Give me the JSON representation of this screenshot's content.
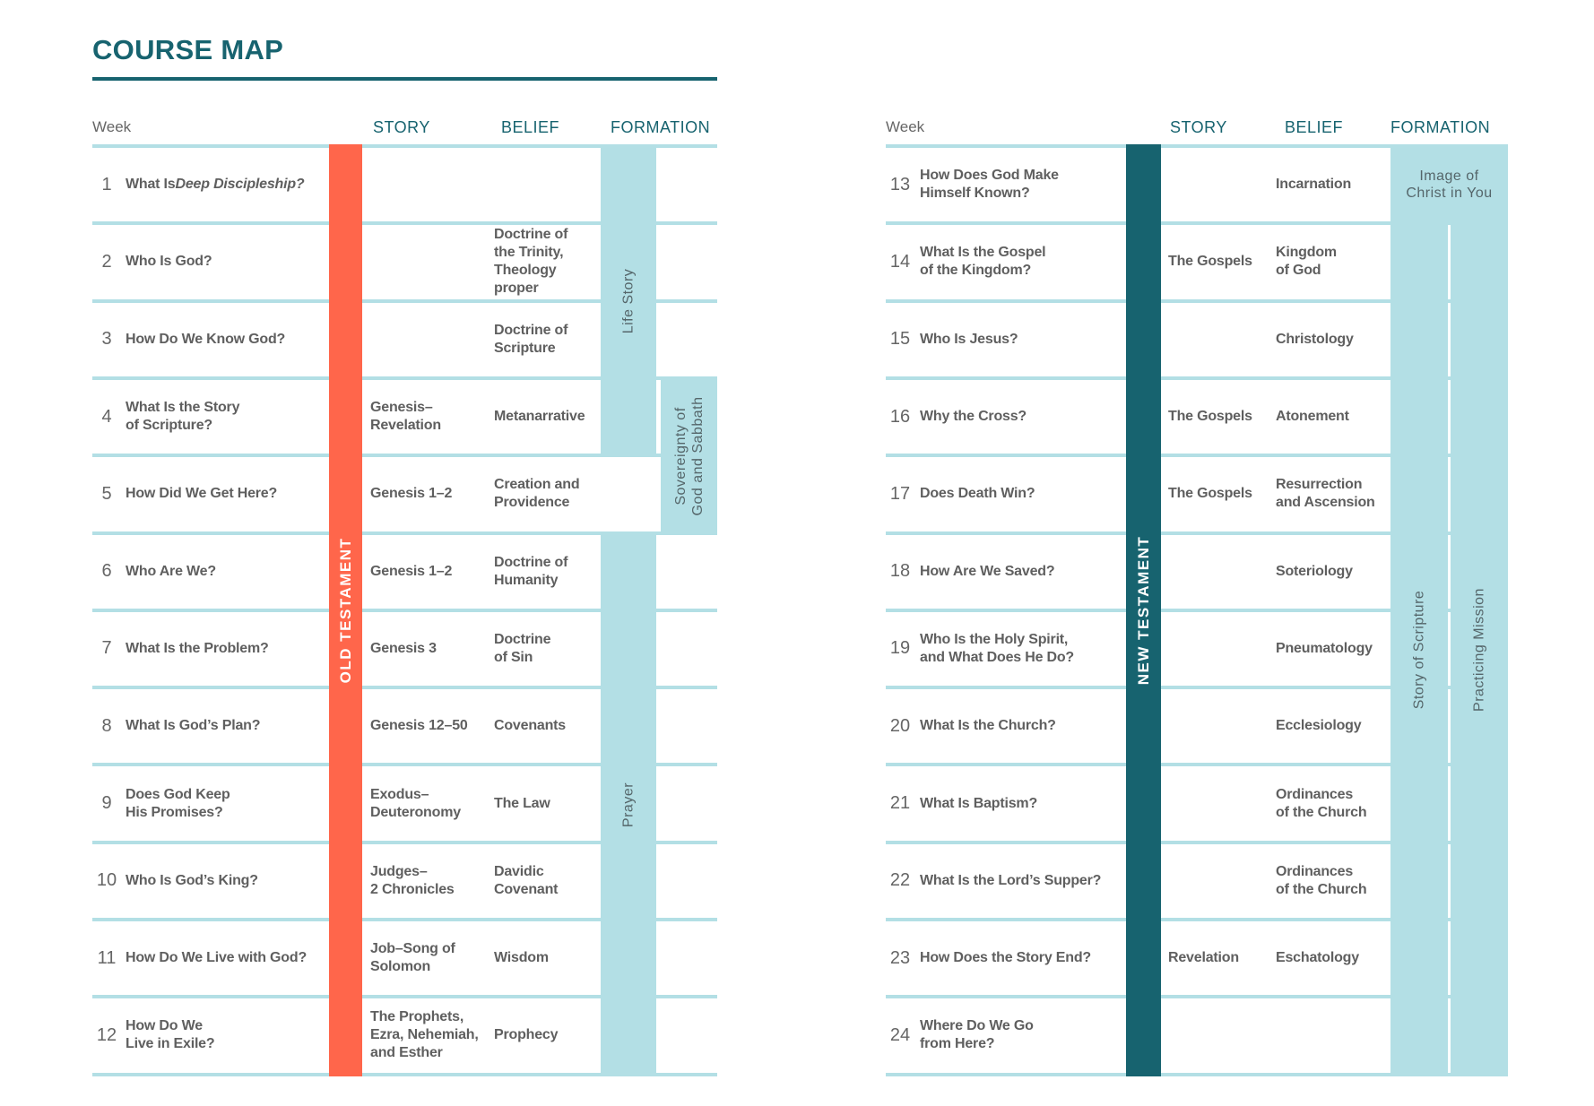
{
  "title": "COURSE MAP",
  "headers": {
    "week": "Week",
    "story": "STORY",
    "belief": "BELIEF",
    "formation": "FORMATION"
  },
  "colors": {
    "title": "#17636f",
    "old_testament": "#ff664b",
    "new_testament": "#17636f",
    "formation": "#b3dfe5",
    "rule": "#b3dfe5"
  },
  "old_testament": {
    "label": "OLD TESTAMENT",
    "rows": [
      {
        "week": "1",
        "title": "What Is <i>Deep Discipleship?</i>",
        "story": "",
        "belief": ""
      },
      {
        "week": "2",
        "title": "Who Is God?",
        "story": "",
        "belief": "Doctrine of<br>the Trinity,<br>Theology<br>proper"
      },
      {
        "week": "3",
        "title": "How Do We Know God?",
        "story": "",
        "belief": "Doctrine of<br>Scripture"
      },
      {
        "week": "4",
        "title": "What Is the Story<br>of Scripture?",
        "story": "Genesis–<br>Revelation",
        "belief": "Metanarrative"
      },
      {
        "week": "5",
        "title": "How Did We Get Here?",
        "story": "Genesis 1–2",
        "belief": "Creation and<br>Providence"
      },
      {
        "week": "6",
        "title": "Who Are We?",
        "story": "Genesis 1–2",
        "belief": "Doctrine of<br>Humanity"
      },
      {
        "week": "7",
        "title": "What Is the Problem?",
        "story": "Genesis 3",
        "belief": "Doctrine<br>of Sin"
      },
      {
        "week": "8",
        "title": "What Is God’s Plan?",
        "story": "Genesis 12–50",
        "belief": "Covenants"
      },
      {
        "week": "9",
        "title": "Does God Keep<br>His Promises?",
        "story": "Exodus–<br>Deuteronomy",
        "belief": "The Law"
      },
      {
        "week": "10",
        "title": "Who Is God’s King?",
        "story": "Judges–<br>2 Chronicles",
        "belief": "Davidic<br>Covenant"
      },
      {
        "week": "11",
        "title": "How Do We Live with God?",
        "story": "Job–Song of<br>Solomon",
        "belief": "Wisdom"
      },
      {
        "week": "12",
        "title": "How Do We<br>Live in Exile?",
        "story": "The Prophets,<br>Ezra, Nehemiah,<br>and Esther",
        "belief": "Prophecy"
      }
    ],
    "formation": [
      {
        "label": "Life Story",
        "col": 1,
        "from": 1,
        "to": 4
      },
      {
        "label": "Sovereignty of<br>God and Sabbath",
        "col": 2,
        "from": 4,
        "to": 5
      },
      {
        "label": "Prayer",
        "col": 1,
        "from": 6,
        "to": 12
      }
    ]
  },
  "new_testament": {
    "label": "NEW TESTAMENT",
    "rows": [
      {
        "week": "13",
        "title": "How Does God Make<br>Himself Known?",
        "story": "",
        "belief": "Incarnation"
      },
      {
        "week": "14",
        "title": "What Is the Gospel<br>of the Kingdom?",
        "story": "The Gospels",
        "belief": "Kingdom<br>of God"
      },
      {
        "week": "15",
        "title": "Who Is Jesus?",
        "story": "",
        "belief": "Christology"
      },
      {
        "week": "16",
        "title": "Why the Cross?",
        "story": "The Gospels",
        "belief": "Atonement"
      },
      {
        "week": "17",
        "title": "Does Death Win?",
        "story": "The Gospels",
        "belief": "Resurrection<br>and Ascension"
      },
      {
        "week": "18",
        "title": "How Are We Saved?",
        "story": "",
        "belief": "Soteriology"
      },
      {
        "week": "19",
        "title": "Who Is the Holy Spirit,<br>and What Does He Do?",
        "story": "",
        "belief": "Pneumatology"
      },
      {
        "week": "20",
        "title": "What Is the Church?",
        "story": "",
        "belief": "Ecclesiology"
      },
      {
        "week": "21",
        "title": "What Is Baptism?",
        "story": "",
        "belief": "Ordinances<br>of the Church"
      },
      {
        "week": "22",
        "title": "What Is the Lord’s Supper?",
        "story": "",
        "belief": "Ordinances<br>of the Church"
      },
      {
        "week": "23",
        "title": "How Does the Story End?",
        "story": "Revelation",
        "belief": "Eschatology"
      },
      {
        "week": "24",
        "title": "Where Do We Go<br>from Here?",
        "story": "",
        "belief": ""
      }
    ],
    "formation": [
      {
        "label": "Image of<br>Christ in You",
        "col": 0,
        "from": 1,
        "to": 1
      },
      {
        "label": "Story of Scripture",
        "col": 1,
        "from": 2,
        "to": 12
      },
      {
        "label": "Practicing Mission",
        "col": 2,
        "from": 2,
        "to": 12
      }
    ]
  }
}
